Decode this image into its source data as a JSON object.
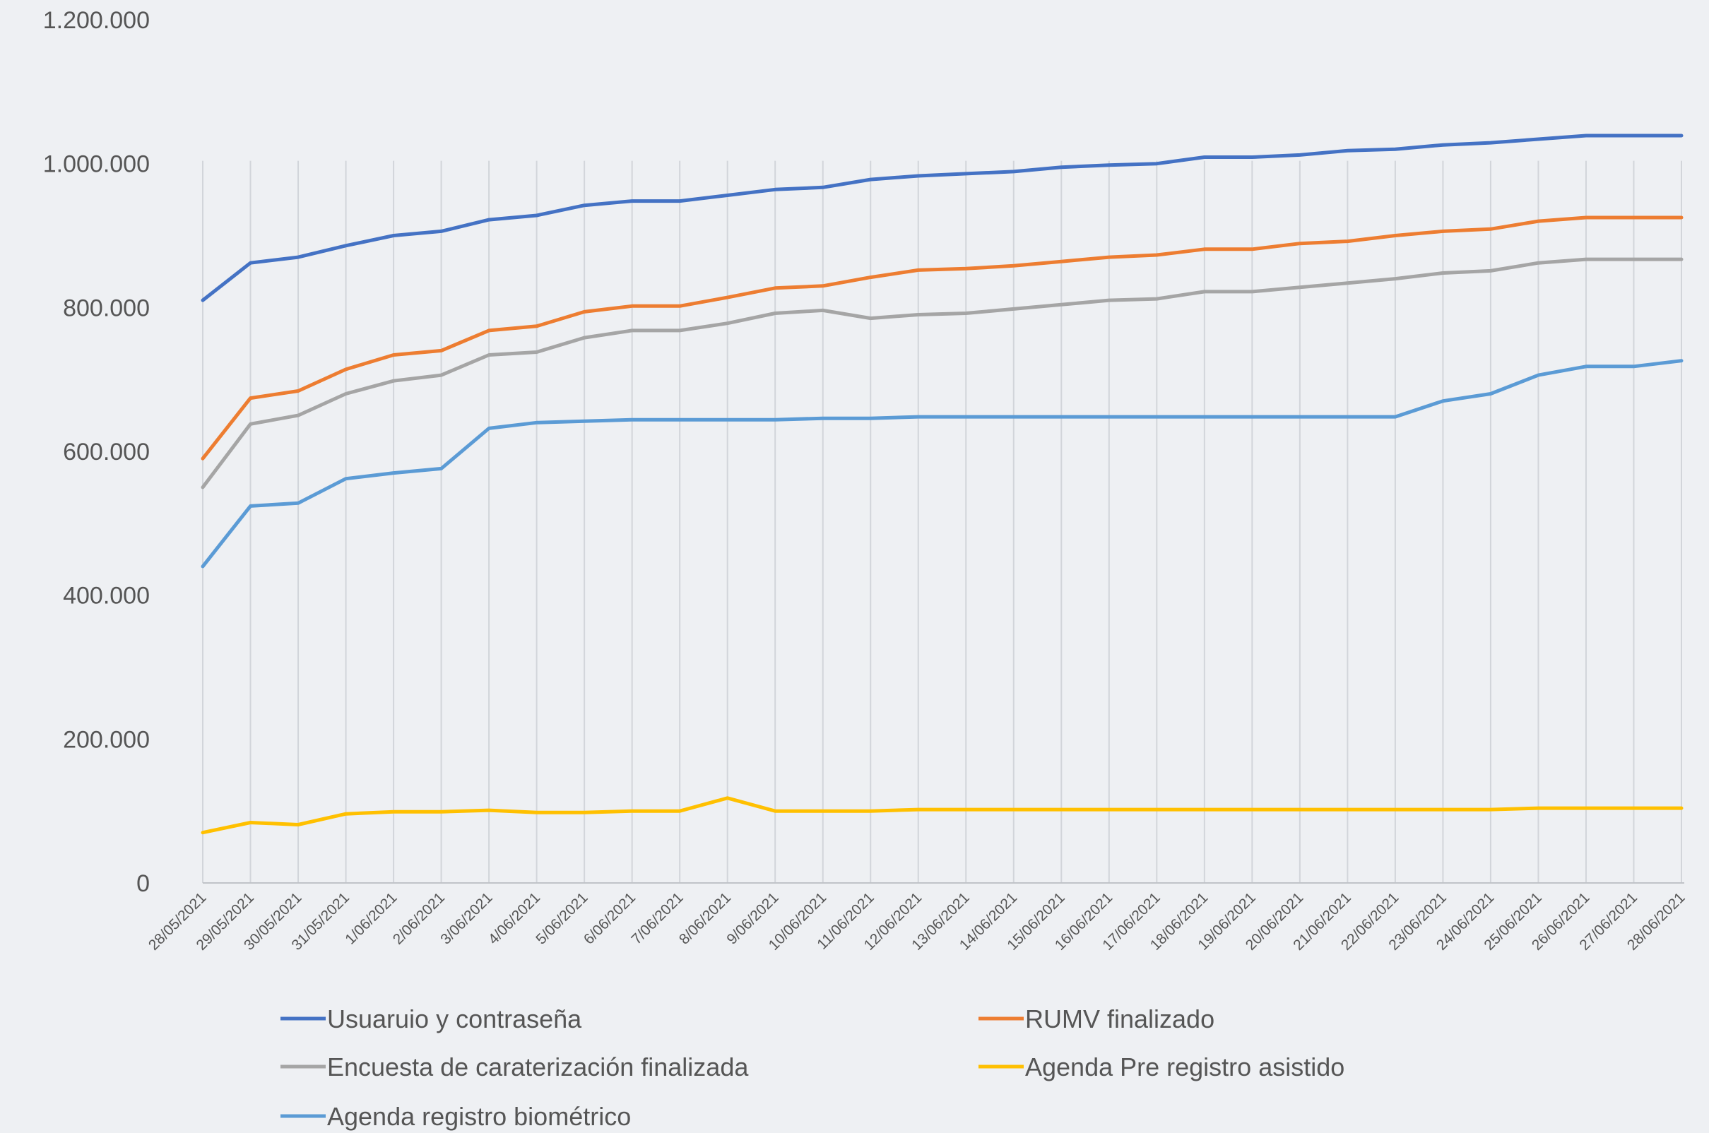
{
  "chart_data": {
    "type": "line",
    "title": "",
    "xlabel": "",
    "ylabel": "",
    "ylim": [
      0,
      1200000
    ],
    "y_ticks": [
      {
        "value": 0,
        "label": "0"
      },
      {
        "value": 200000,
        "label": "200.000"
      },
      {
        "value": 400000,
        "label": "400.000"
      },
      {
        "value": 600000,
        "label": "600.000"
      },
      {
        "value": 800000,
        "label": "800.000"
      },
      {
        "value": 1000000,
        "label": "1.000.000"
      },
      {
        "value": 1200000,
        "label": "1.200.000"
      }
    ],
    "grid": "vertical",
    "legend_position": "bottom",
    "categories": [
      "28/05/2021",
      "29/05/2021",
      "30/05/2021",
      "31/05/2021",
      "1/06/2021",
      "2/06/2021",
      "3/06/2021",
      "4/06/2021",
      "5/06/2021",
      "6/06/2021",
      "7/06/2021",
      "8/06/2021",
      "9/06/2021",
      "10/06/2021",
      "11/06/2021",
      "12/06/2021",
      "13/06/2021",
      "14/06/2021",
      "15/06/2021",
      "16/06/2021",
      "17/06/2021",
      "18/06/2021",
      "19/06/2021",
      "20/06/2021",
      "21/06/2021",
      "22/06/2021",
      "23/06/2021",
      "24/06/2021",
      "25/06/2021",
      "26/06/2021",
      "27/06/2021",
      "28/06/2021"
    ],
    "series": [
      {
        "name": "Usuaruio y contraseña",
        "color": "#4472c4",
        "values": [
          810000,
          862000,
          870000,
          886000,
          900000,
          906000,
          922000,
          928000,
          942000,
          948000,
          948000,
          956000,
          964000,
          967000,
          978000,
          983000,
          986000,
          989000,
          995000,
          998000,
          1000000,
          1009000,
          1009000,
          1012000,
          1018000,
          1020000,
          1026000,
          1029000,
          1034000,
          1039000,
          1039000,
          1039000
        ]
      },
      {
        "name": "RUMV finalizado",
        "color": "#ed7d31",
        "values": [
          590000,
          674000,
          684000,
          714000,
          734000,
          740000,
          768000,
          774000,
          794000,
          802000,
          802000,
          814000,
          827000,
          830000,
          842000,
          852000,
          854000,
          858000,
          864000,
          870000,
          873000,
          881000,
          881000,
          889000,
          892000,
          900000,
          906000,
          909000,
          920000,
          925000,
          925000,
          925000
        ]
      },
      {
        "name": "Encuesta de caraterización finalizada",
        "color": "#a5a5a5",
        "values": [
          550000,
          638000,
          650000,
          680000,
          698000,
          706000,
          734000,
          738000,
          758000,
          768000,
          768000,
          778000,
          792000,
          796000,
          785000,
          790000,
          792000,
          798000,
          804000,
          810000,
          812000,
          822000,
          822000,
          828000,
          834000,
          840000,
          848000,
          851000,
          862000,
          867000,
          867000,
          867000
        ]
      },
      {
        "name": "Agenda Pre registro asistido",
        "color": "#ffc000",
        "values": [
          70000,
          84000,
          81000,
          96000,
          99000,
          99000,
          101000,
          98000,
          98000,
          100000,
          100000,
          118000,
          100000,
          100000,
          100000,
          102000,
          102000,
          102000,
          102000,
          102000,
          102000,
          102000,
          102000,
          102000,
          102000,
          102000,
          102000,
          102000,
          104000,
          104000,
          104000,
          104000
        ]
      },
      {
        "name": "Agenda registro biométrico",
        "color": "#5b9bd5",
        "values": [
          440000,
          524000,
          528000,
          562000,
          570000,
          576000,
          632000,
          640000,
          642000,
          644000,
          644000,
          644000,
          644000,
          646000,
          646000,
          648000,
          648000,
          648000,
          648000,
          648000,
          648000,
          648000,
          648000,
          648000,
          648000,
          648000,
          670000,
          680000,
          706000,
          718000,
          718000,
          726000
        ]
      }
    ]
  }
}
